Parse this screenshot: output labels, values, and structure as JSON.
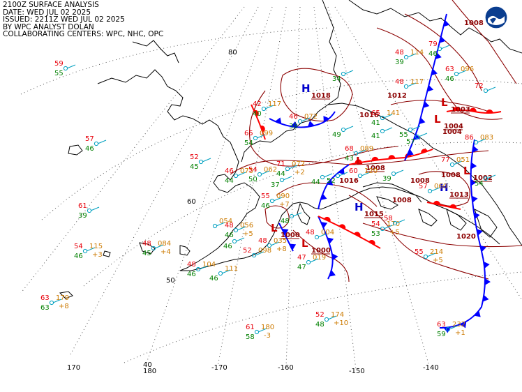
{
  "header": {
    "line1": "2100Z SURFACE ANALYSIS",
    "line2": "DATE: WED JUL 02 2025",
    "line3": "ISSUED: 2211Z WED JUL 02 2025",
    "line4": "BY WPC ANALYST DOLAN",
    "line5": "COLLABORATING CENTERS: WPC, NHC, OPC"
  },
  "logo": {
    "icon": "noaa-logo-icon"
  },
  "graticule": {
    "lat_labels": [
      "80",
      "60",
      "50",
      "40"
    ],
    "lon_labels": [
      "170",
      "180",
      "-170",
      "-160",
      "-150",
      "-140"
    ]
  },
  "colors": {
    "temperature": "#e8000b",
    "dewpoint": "#008000",
    "pressure": "#cc7a00",
    "isobar": "#8b0000",
    "cold_front": "#0000ff",
    "warm_front": "#ff0000",
    "high": "#0000cc",
    "low": "#cc0000",
    "station": "#00a0c0",
    "coast": "#000000"
  },
  "pressure_centers": [
    {
      "type": "H",
      "value": "1018"
    },
    {
      "type": "L",
      "value": "1008"
    },
    {
      "type": "H",
      "value": "1015"
    },
    {
      "type": "L",
      "value": "1000"
    },
    {
      "type": "L",
      "value": "1000"
    },
    {
      "type": "L",
      "value": "1004"
    },
    {
      "type": "L",
      "value": "1003"
    },
    {
      "type": "H",
      "value": "1013"
    },
    {
      "type": "L",
      "value": "1002"
    }
  ],
  "isobar_labels": [
    "1008",
    "1012",
    "1016",
    "1016",
    "1008",
    "1008",
    "1020",
    "1004",
    "1008"
  ],
  "stations": [
    {
      "t": "59",
      "td": "55",
      "p": "",
      "tend": ""
    },
    {
      "t": "57",
      "td": "46",
      "p": "",
      "tend": ""
    },
    {
      "t": "61",
      "td": "39",
      "p": "",
      "tend": ""
    },
    {
      "t": "52",
      "td": "45",
      "p": "",
      "tend": ""
    },
    {
      "t": "54",
      "td": "46",
      "p": "115",
      "tend": "+3"
    },
    {
      "t": "48",
      "td": "45",
      "p": "084",
      "tend": "+4"
    },
    {
      "t": "48",
      "td": "46",
      "p": "104",
      "tend": ""
    },
    {
      "t": "",
      "td": "46",
      "p": "111",
      "tend": ""
    },
    {
      "t": "63",
      "td": "63",
      "p": "179",
      "tend": "+8"
    },
    {
      "t": "",
      "td": "",
      "p": "054",
      "tend": ""
    },
    {
      "t": "48",
      "td": "46",
      "p": "056",
      "tend": "+5"
    },
    {
      "t": "52",
      "td": "",
      "p": "098",
      "tend": ""
    },
    {
      "t": "48",
      "td": "",
      "p": "035",
      "tend": "+8"
    },
    {
      "t": "47",
      "td": "47",
      "p": "019",
      "tend": ""
    },
    {
      "t": "48",
      "td": "",
      "p": "004",
      "tend": ""
    },
    {
      "t": "52",
      "td": "48",
      "p": "174",
      "tend": "+10"
    },
    {
      "t": "61",
      "td": "58",
      "p": "180",
      "tend": "-3"
    },
    {
      "t": "42",
      "td": "40",
      "p": "117",
      "tend": ""
    },
    {
      "t": "46",
      "td": "38",
      "p": "072",
      "tend": ""
    },
    {
      "t": "65",
      "td": "54",
      "p": "099",
      "tend": ""
    },
    {
      "t": "46",
      "td": "44",
      "p": "075",
      "tend": ""
    },
    {
      "t": "54",
      "td": "50",
      "p": "062",
      "tend": ""
    },
    {
      "t": "71",
      "td": "44",
      "p": "072",
      "tend": "+2"
    },
    {
      "t": "55",
      "td": "46",
      "p": "090",
      "tend": "+7"
    },
    {
      "t": "68",
      "td": "43",
      "p": "089",
      "tend": ""
    },
    {
      "t": "60",
      "td": "",
      "p": "120",
      "tend": ""
    },
    {
      "t": "54",
      "td": "53",
      "p": "170",
      "tend": "+5"
    },
    {
      "t": "55",
      "td": "",
      "p": "214",
      "tend": "+5"
    },
    {
      "t": "63",
      "td": "59",
      "p": "232",
      "tend": "+1"
    },
    {
      "t": "65",
      "td": "41",
      "p": "141",
      "tend": ""
    },
    {
      "t": "48",
      "td": "",
      "p": "117",
      "tend": ""
    },
    {
      "t": "48",
      "td": "39",
      "p": "114",
      "tend": ""
    },
    {
      "t": "79",
      "td": "46",
      "p": "",
      "tend": ""
    },
    {
      "t": "63",
      "td": "46",
      "p": "096",
      "tend": ""
    },
    {
      "t": "72",
      "td": "",
      "p": "",
      "tend": ""
    },
    {
      "t": "77",
      "td": "",
      "p": "051",
      "tend": ""
    },
    {
      "t": "86",
      "td": "",
      "p": "083",
      "tend": ""
    },
    {
      "t": "57",
      "td": "",
      "p": "060",
      "tend": ""
    },
    {
      "t": "58",
      "td": "",
      "p": "",
      "tend": ""
    },
    {
      "t": "",
      "td": "46",
      "p": "",
      "tend": ""
    },
    {
      "t": "",
      "td": "48",
      "p": "",
      "tend": ""
    },
    {
      "t": "",
      "td": "54",
      "p": "",
      "tend": ""
    },
    {
      "t": "",
      "td": "55",
      "p": "",
      "tend": ""
    },
    {
      "t": "",
      "td": "41",
      "p": "",
      "tend": ""
    },
    {
      "t": "",
      "td": "57",
      "p": "",
      "tend": ""
    },
    {
      "t": "",
      "td": "44",
      "p": "",
      "tend": ""
    },
    {
      "t": "",
      "td": "49",
      "p": "",
      "tend": ""
    },
    {
      "t": "",
      "td": "39",
      "p": "",
      "tend": ""
    },
    {
      "t": "",
      "td": "37",
      "p": "",
      "tend": ""
    },
    {
      "t": "",
      "td": "34",
      "p": "",
      "tend": ""
    },
    {
      "t": "",
      "td": "52",
      "p": "",
      "tend": ""
    }
  ]
}
